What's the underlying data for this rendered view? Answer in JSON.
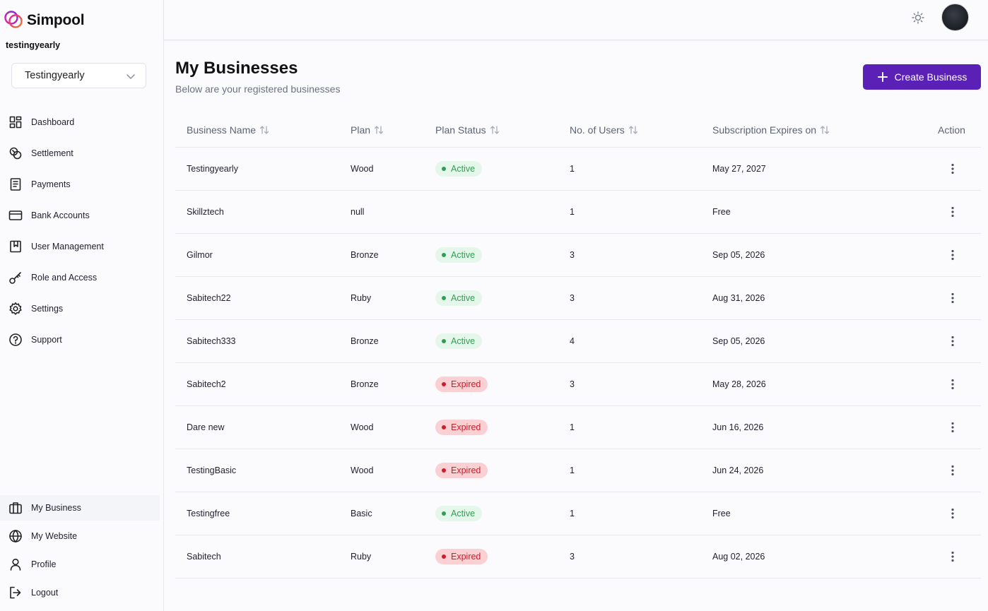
{
  "brand": {
    "name": "Simpool"
  },
  "sidebar": {
    "account_name": "testingyearly",
    "business_select": {
      "value": "Testingyearly"
    },
    "nav_items": [
      {
        "label": "Dashboard",
        "icon": "dashboard-icon"
      },
      {
        "label": "Settlement",
        "icon": "coins-icon"
      },
      {
        "label": "Payments",
        "icon": "receipt-icon"
      },
      {
        "label": "Bank Accounts",
        "icon": "card-icon"
      },
      {
        "label": "User Management",
        "icon": "bookmark-icon"
      },
      {
        "label": "Role and Access",
        "icon": "key-icon"
      },
      {
        "label": "Settings",
        "icon": "gear-icon"
      },
      {
        "label": "Support",
        "icon": "help-icon"
      }
    ],
    "bottom_items": [
      {
        "label": "My Business",
        "icon": "briefcase-icon"
      },
      {
        "label": "My Website",
        "icon": "globe-icon"
      },
      {
        "label": "Profile",
        "icon": "user-icon"
      },
      {
        "label": "Logout",
        "icon": "logout-icon"
      }
    ]
  },
  "header": {
    "title": "My Businesses",
    "subtitle": "Below are your registered businesses",
    "create_label": "Create Business"
  },
  "table": {
    "columns": [
      "Business Name",
      "Plan",
      "Plan Status",
      "No. of Users",
      "Subscription Expires on",
      "Action"
    ],
    "rows": [
      {
        "name": "Testingyearly",
        "plan": "Wood",
        "status": "Active",
        "users": "1",
        "expires": "May 27, 2027"
      },
      {
        "name": "Skillztech",
        "plan": "null",
        "status": "",
        "users": "1",
        "expires": "Free"
      },
      {
        "name": "Gilmor",
        "plan": "Bronze",
        "status": "Active",
        "users": "3",
        "expires": "Sep 05, 2026"
      },
      {
        "name": "Sabitech22",
        "plan": "Ruby",
        "status": "Active",
        "users": "3",
        "expires": "Aug 31, 2026"
      },
      {
        "name": "Sabitech333",
        "plan": "Bronze",
        "status": "Active",
        "users": "4",
        "expires": "Sep 05, 2026"
      },
      {
        "name": "Sabitech2",
        "plan": "Bronze",
        "status": "Expired",
        "users": "3",
        "expires": "May 28, 2026"
      },
      {
        "name": "Dare new",
        "plan": "Wood",
        "status": "Expired",
        "users": "1",
        "expires": "Jun 16, 2026"
      },
      {
        "name": "TestingBasic",
        "plan": "Wood",
        "status": "Expired",
        "users": "1",
        "expires": "Jun 24, 2026"
      },
      {
        "name": "Testingfree",
        "plan": "Basic",
        "status": "Active",
        "users": "1",
        "expires": "Free"
      },
      {
        "name": "Sabitech",
        "plan": "Ruby",
        "status": "Expired",
        "users": "3",
        "expires": "Aug 02, 2026"
      }
    ]
  },
  "colors": {
    "accent": "#5b21b6",
    "active_bg": "#e4f7ea",
    "active_fg": "#2f9e55",
    "expired_bg": "#fbd0d2",
    "expired_fg": "#c81e2e"
  }
}
